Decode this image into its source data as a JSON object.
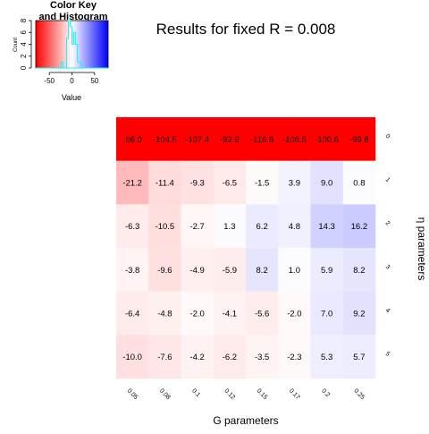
{
  "chart_data": [
    {
      "type": "heatmap",
      "title": "Results for fixed R = 0.008",
      "xlabel": "G parameters",
      "ylabel": "η parameters",
      "x_categories": [
        "0.05",
        "0.08",
        "0.1",
        "0.12",
        "0.15",
        "0.17",
        "0.2",
        "0.25"
      ],
      "y_categories": [
        "0",
        "1",
        "2",
        "3",
        "4",
        "5"
      ],
      "values": [
        [
          -96.0,
          -104.5,
          -107.4,
          -92.9,
          -116.8,
          -106.5,
          -100.6,
          -99.8
        ],
        [
          -21.2,
          -11.4,
          -9.3,
          -6.5,
          -1.5,
          3.9,
          9.0,
          0.8
        ],
        [
          -6.3,
          -10.5,
          -2.7,
          1.3,
          6.2,
          4.8,
          14.3,
          16.2
        ],
        [
          -3.8,
          -9.6,
          -4.9,
          -5.9,
          8.2,
          1.0,
          5.9,
          8.2
        ],
        [
          -6.4,
          -4.8,
          -2.0,
          -4.1,
          -5.6,
          -2.0,
          7.0,
          9.2
        ],
        [
          -10.0,
          -7.6,
          -4.2,
          -6.2,
          -3.5,
          -2.3,
          5.3,
          5.7
        ]
      ],
      "cell_labels": [
        [
          "-96.0",
          "-104.5",
          "-107.4",
          "-92.9",
          "-116.8",
          "-106.5",
          "-100.6",
          "-99.8"
        ],
        [
          "-21.2",
          "-11.4",
          "-9.3",
          "-6.5",
          "-1.5",
          "3.9",
          "9.0",
          "0.8"
        ],
        [
          "-6.3",
          "-10.5",
          "-2.7",
          "1.3",
          "6.2",
          "4.8",
          "14.3",
          "16.2"
        ],
        [
          "-3.8",
          "-9.6",
          "-4.9",
          "-5.9",
          "8.2",
          "1.0",
          "5.9",
          "8.2"
        ],
        [
          "-6.4",
          "-4.8",
          "-2.0",
          "-4.1",
          "-5.6",
          "-2.0",
          "7.0",
          "9.2"
        ],
        [
          "-10.0",
          "-7.6",
          "-4.2",
          "-6.2",
          "-3.5",
          "-2.3",
          "5.3",
          "5.7"
        ]
      ],
      "color_range": [
        -80,
        80
      ],
      "colors": {
        "low": "#ff0000",
        "mid": "#ffffff",
        "high": "#0000ff"
      }
    },
    {
      "type": "bar",
      "title": "Color Key and Histogram",
      "title_lines": [
        "Color Key",
        "and Histogram"
      ],
      "xlabel": "Value",
      "ylabel": "Count",
      "x_ticks": [
        "-50",
        "0",
        "50"
      ],
      "x_tick_values": [
        -50,
        0,
        50
      ],
      "y_ticks": [
        "0",
        "2",
        "4",
        "6",
        "8"
      ],
      "y_tick_values": [
        0,
        2,
        4,
        6,
        8
      ],
      "xlim": [
        -80,
        80
      ],
      "ylim": [
        0,
        8
      ],
      "histogram_color": "#00ffff"
    }
  ]
}
